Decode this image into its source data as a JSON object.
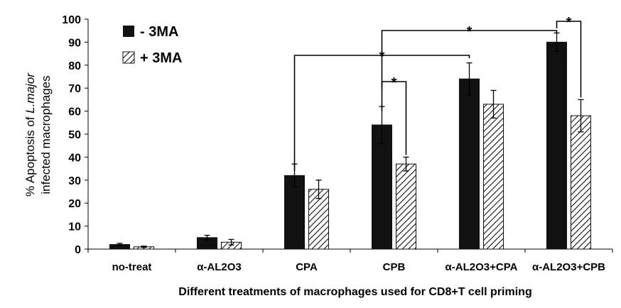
{
  "chart_data": {
    "type": "bar",
    "title": "",
    "xlabel": "Different treatments of macrophages used for CD8+T cell priming",
    "ylabel_prefix": "% Apoptosis of ",
    "ylabel_italic": "L.major",
    "ylabel_line2": "infected macrophages",
    "ylim": [
      0,
      100
    ],
    "yticks": [
      0,
      10,
      20,
      30,
      40,
      50,
      60,
      70,
      80,
      90,
      100
    ],
    "categories": [
      "no-treat",
      "α-AL2O3",
      "CPA",
      "CPB",
      "α-AL2O3+CPA",
      "α-AL2O3+CPB"
    ],
    "series": [
      {
        "name": "- 3MA",
        "pattern": "solid",
        "color": "#111111",
        "values": [
          2,
          5,
          32,
          54,
          74,
          90
        ],
        "errors": [
          0.5,
          1,
          5,
          8,
          7,
          4
        ]
      },
      {
        "name": "+ 3MA",
        "pattern": "hatched",
        "color": "#111111",
        "values": [
          1,
          3,
          26,
          37,
          63,
          58
        ],
        "errors": [
          0.3,
          1.2,
          4,
          3,
          6,
          7
        ]
      }
    ],
    "significance": [
      {
        "label": "*",
        "from": "CPB - 3MA",
        "to": "CPB + 3MA"
      },
      {
        "label": "*",
        "from": "α-AL2O3+CPB - 3MA",
        "to": "α-AL2O3+CPB + 3MA"
      },
      {
        "label": "*",
        "from": "CPA - 3MA",
        "to": "α-AL2O3+CPA - 3MA"
      },
      {
        "label": "*",
        "from": "CPB - 3MA",
        "to": "α-AL2O3+CPB - 3MA"
      }
    ],
    "legend_position": "top-left"
  }
}
